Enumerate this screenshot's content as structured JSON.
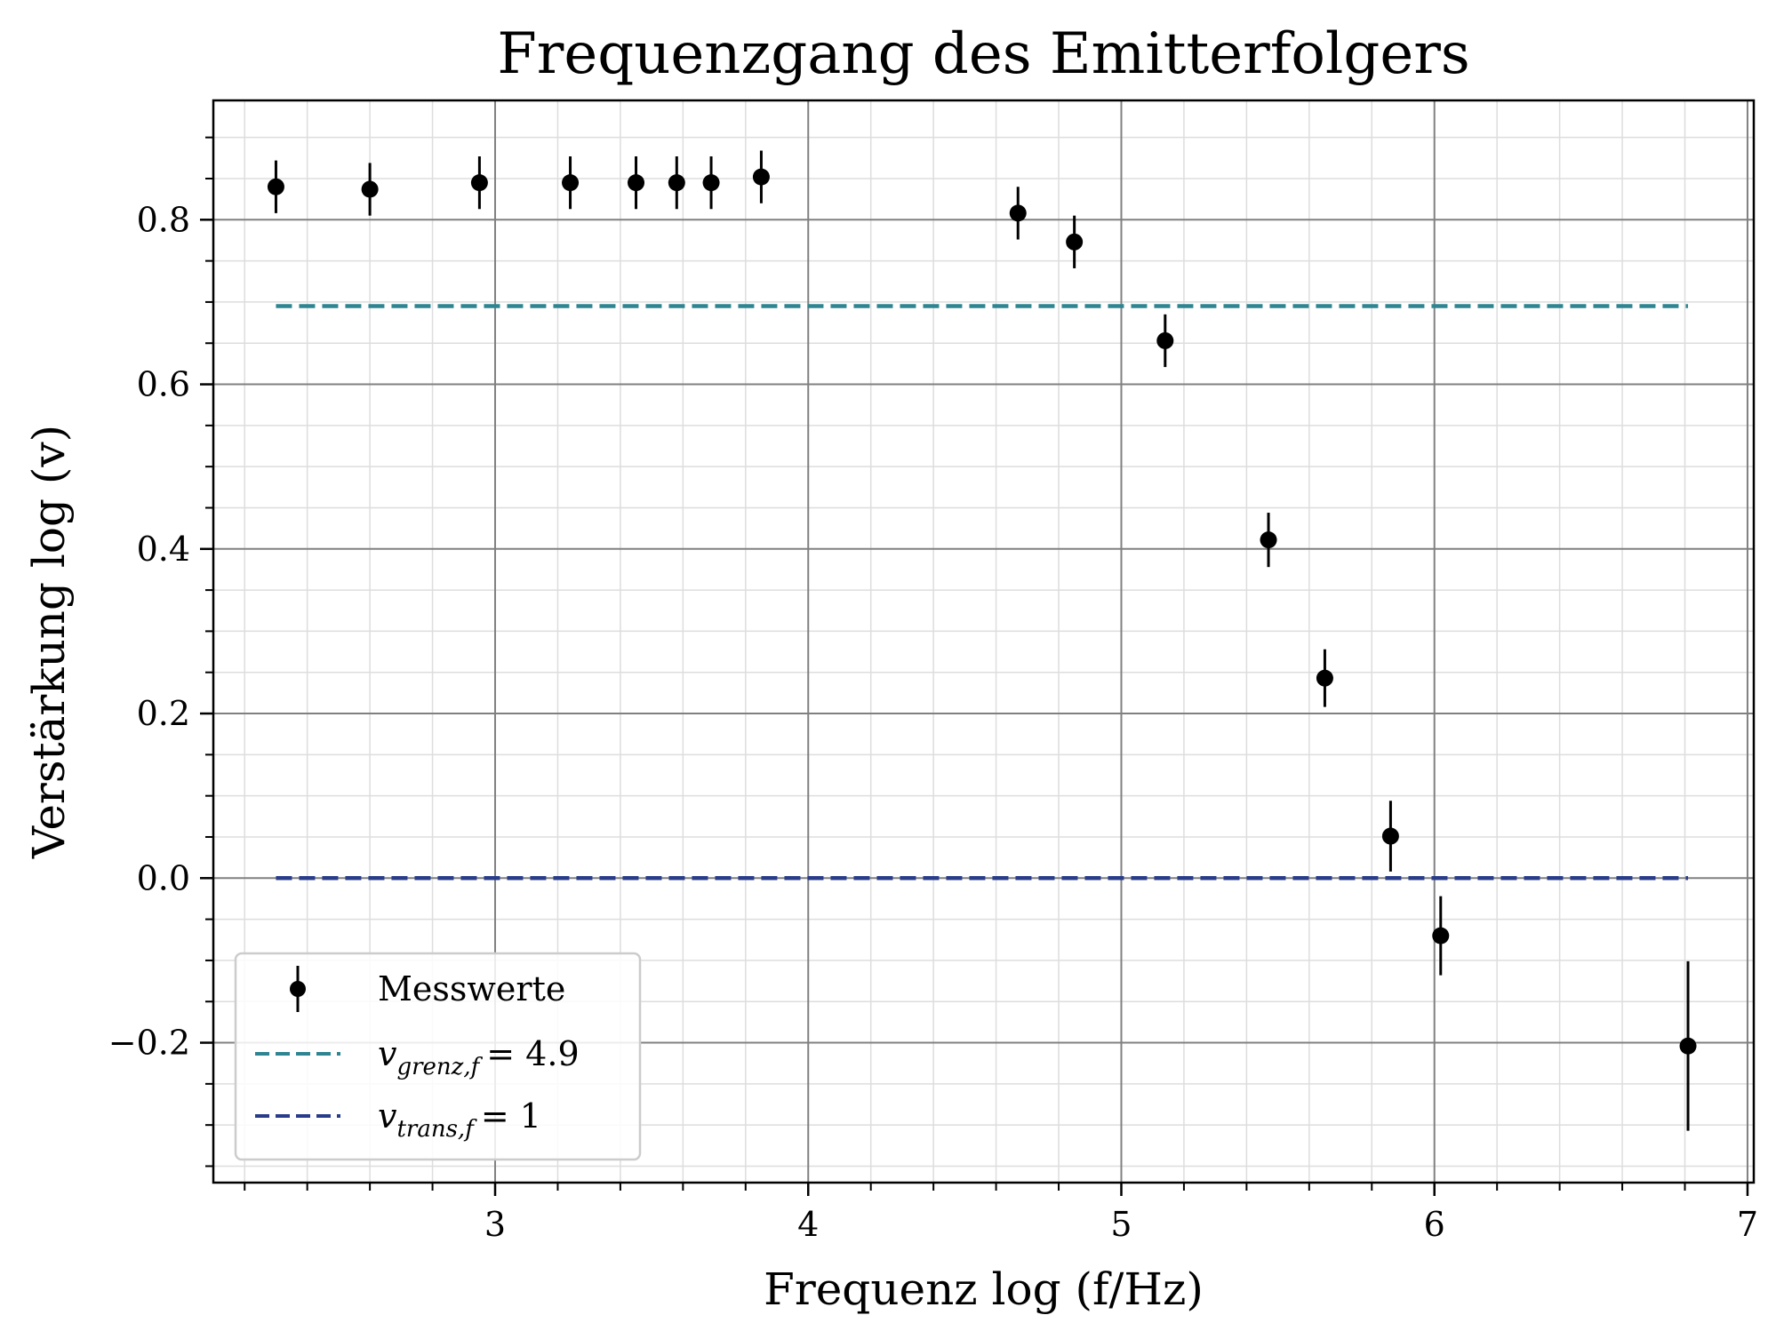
{
  "chart_data": {
    "type": "scatter",
    "title": "Frequenzgang des Emitterfolgers",
    "xlabel": "Frequenz log (f/Hz)",
    "ylabel": "Verstärkung log (v)",
    "xlim": [
      2.1,
      7.02
    ],
    "ylim": [
      -0.37,
      0.945
    ],
    "xticks": [
      3,
      4,
      5,
      6,
      7
    ],
    "yticks": [
      -0.2,
      0.0,
      0.2,
      0.4,
      0.6,
      0.8
    ],
    "xtick_labels": [
      "3",
      "4",
      "5",
      "6",
      "7"
    ],
    "ytick_labels": [
      "−0.2",
      "0.0",
      "0.2",
      "0.4",
      "0.6",
      "0.8"
    ],
    "x_minor_step": 0.2,
    "y_minor_step": 0.05,
    "grid": true,
    "legend_position": "lower-left",
    "series": [
      {
        "name": "Messwerte",
        "kind": "errorbar",
        "color": "#000000",
        "x": [
          2.3,
          2.6,
          2.95,
          3.24,
          3.45,
          3.58,
          3.69,
          3.85,
          4.67,
          4.85,
          5.14,
          5.47,
          5.65,
          5.86,
          6.02,
          6.81
        ],
        "y": [
          0.84,
          0.837,
          0.845,
          0.845,
          0.845,
          0.845,
          0.845,
          0.852,
          0.808,
          0.773,
          0.653,
          0.411,
          0.243,
          0.051,
          -0.07,
          -0.204
        ],
        "yerr": [
          0.032,
          0.032,
          0.032,
          0.032,
          0.032,
          0.032,
          0.032,
          0.032,
          0.032,
          0.032,
          0.032,
          0.033,
          0.035,
          0.043,
          0.048,
          0.103
        ]
      },
      {
        "name_main": "v",
        "name_sub": "grenz,f",
        "name_value": "= 4.9",
        "kind": "hline",
        "color": "#2e8591",
        "y": 0.695,
        "x_range": [
          2.3,
          6.81
        ]
      },
      {
        "name_main": "v",
        "name_sub": "trans,f",
        "name_value": "= 1",
        "kind": "hline",
        "color": "#283c8a",
        "y": 0.0,
        "x_range": [
          2.3,
          6.81
        ]
      }
    ]
  }
}
